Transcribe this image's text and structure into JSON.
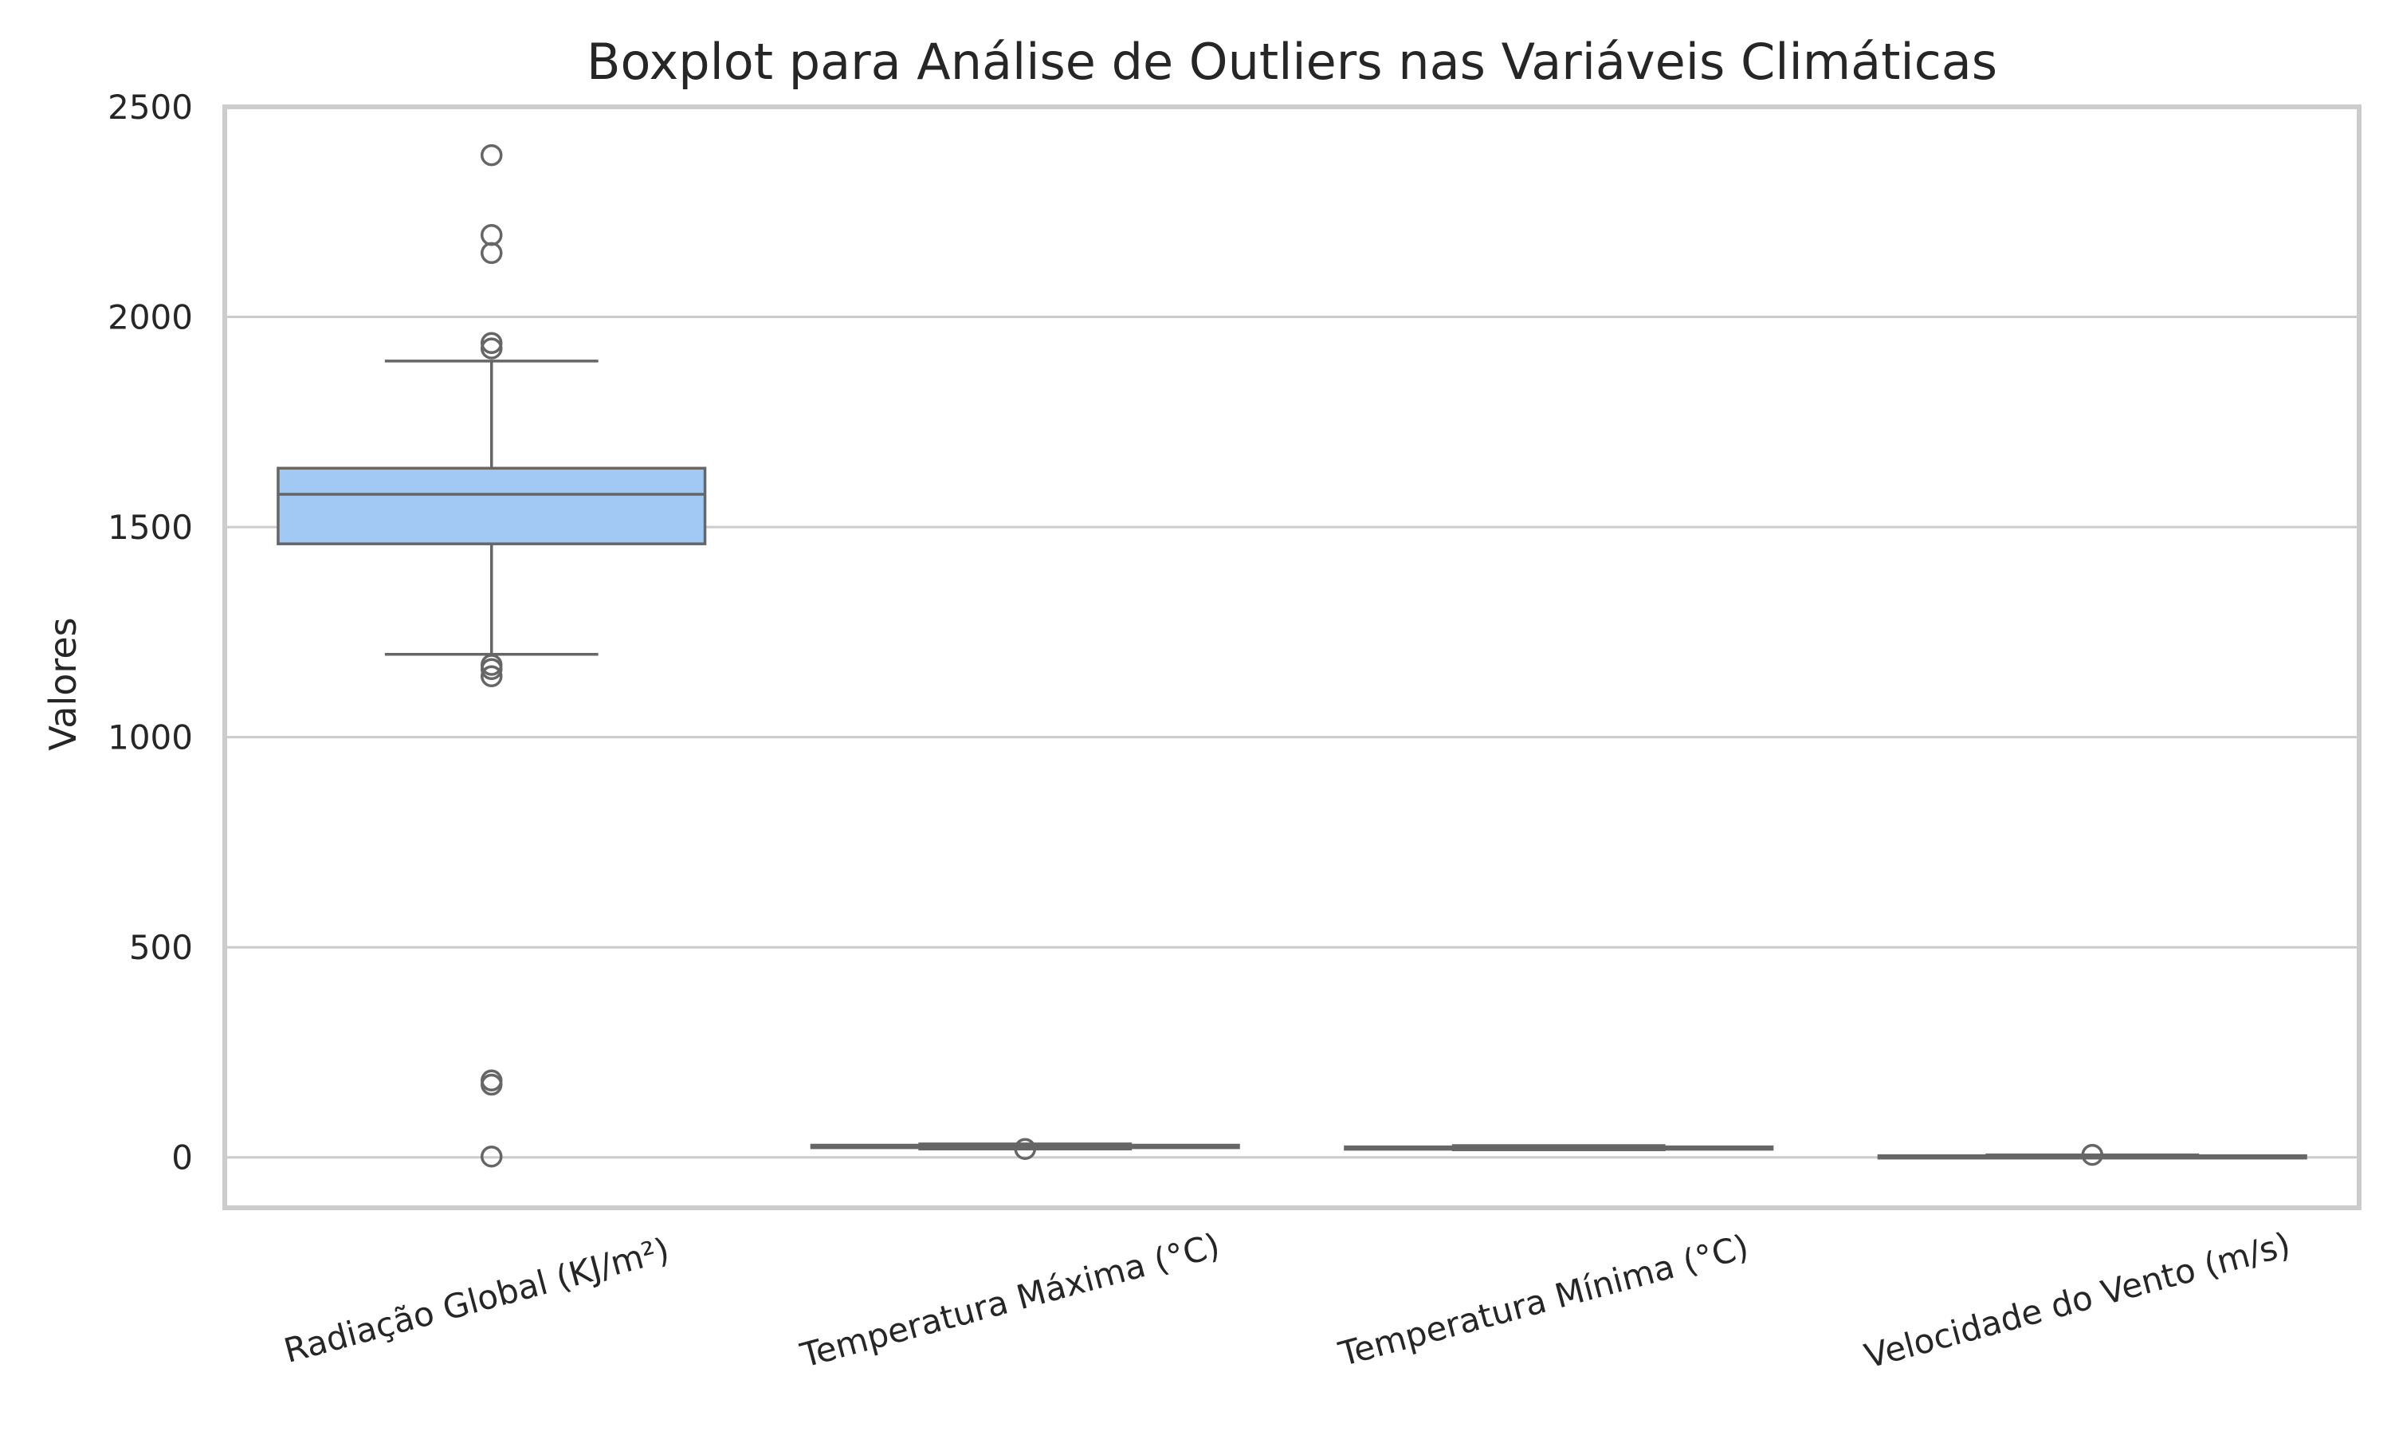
{
  "chart_data": {
    "type": "boxplot",
    "title": "Boxplot para Análise de Outliers nas Variáveis Climáticas",
    "xlabel": "",
    "ylabel": "Valores",
    "ylim": [
      -120,
      2500
    ],
    "yticks": [
      0,
      500,
      1000,
      1500,
      2000,
      2500
    ],
    "grid": "horizontal",
    "box_color": "#a1c9f4",
    "line_color": "#666666",
    "categories": [
      "Radiação Global (KJ/m²)",
      "Temperatura Máxima (°C)",
      "Temperatura Mínima (°C)",
      "Velocidade do Vento (m/s)"
    ],
    "boxes": [
      {
        "q1": 1460,
        "median": 1578,
        "q3": 1640,
        "whisker_low": 1197,
        "whisker_high": 1895,
        "outliers": [
          2385,
          2195,
          2152,
          1938,
          1925,
          1172,
          1162,
          1145,
          183,
          173,
          2
        ]
      },
      {
        "q1": 23,
        "median": 26,
        "q3": 29,
        "whisker_low": 20,
        "whisker_high": 32,
        "outliers": [
          20
        ]
      },
      {
        "q1": 21,
        "median": 23,
        "q3": 25,
        "whisker_low": 18,
        "whisker_high": 28,
        "outliers": []
      },
      {
        "q1": 2,
        "median": 3,
        "q3": 4,
        "whisker_low": 0.5,
        "whisker_high": 6,
        "outliers": [
          6
        ]
      }
    ]
  }
}
